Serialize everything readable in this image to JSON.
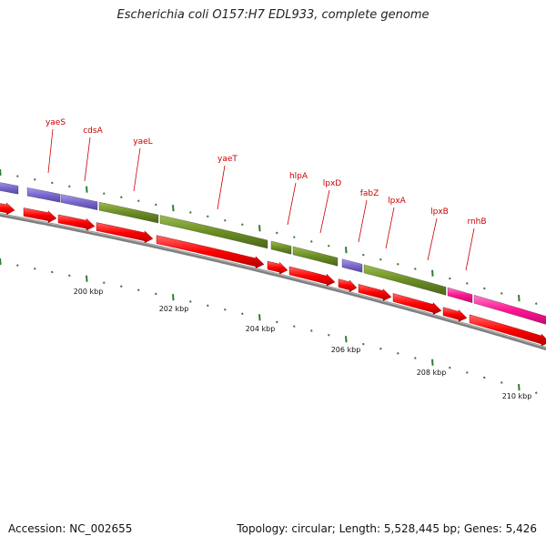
{
  "title": "Escherichia coli O157:H7 EDL933, complete genome",
  "footer": {
    "accession": "Accession: NC_002655",
    "stats": "Topology: circular; Length: 5,528,445 bp; Genes: 5,426"
  },
  "colors": {
    "cds": "#ff0000",
    "gene_purple": "#7b68cf",
    "gene_green": "#6b8e23",
    "gene_pink": "#ff1493",
    "backbone": "#7f7f7f",
    "tick_major": "#2e7d32",
    "label": "#cc0000"
  },
  "genes": [
    {
      "name": "yaeS"
    },
    {
      "name": "cdsA"
    },
    {
      "name": "yaeL"
    },
    {
      "name": "yaeT"
    },
    {
      "name": "hlpA"
    },
    {
      "name": "lpxD"
    },
    {
      "name": "fabZ"
    },
    {
      "name": "lpxA"
    },
    {
      "name": "lpxB"
    },
    {
      "name": "rnhB"
    }
  ],
  "kbp_labels": [
    "200 kbp",
    "202 kbp",
    "204 kbp",
    "206 kbp",
    "208 kbp",
    "210 kbp"
  ]
}
